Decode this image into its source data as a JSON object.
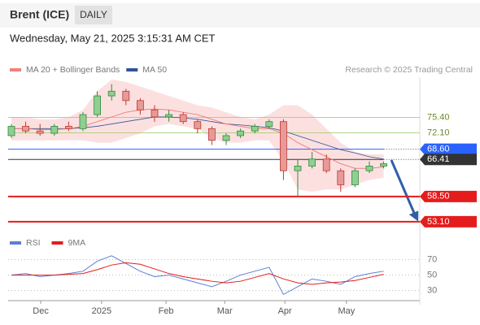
{
  "header": {
    "title": "Brent (ICE)",
    "interval": "DAILY",
    "timestamp": "Wednesday, May 21, 2025 3:15:31 AM CET"
  },
  "chart_data": {
    "type": "candlestick",
    "legend": [
      {
        "name": "MA 20 + Bollinger Bands",
        "color": "#f08080"
      },
      {
        "name": "MA 50",
        "color": "#2f5496"
      }
    ],
    "credit": "Research © 2025 Trading Central",
    "ylim": [
      51,
      84
    ],
    "xticks": [
      {
        "value": 2.05,
        "label": "Dec"
      },
      {
        "value": 6.3,
        "label": "2025"
      },
      {
        "value": 10.8,
        "label": "Feb"
      },
      {
        "value": 14.9,
        "label": "Mar"
      },
      {
        "value": 19.1,
        "label": "Apr"
      },
      {
        "value": 23.4,
        "label": "May"
      }
    ],
    "candles": [
      [
        71.5,
        74,
        71,
        73.5
      ],
      [
        73.5,
        74.5,
        72,
        72.5
      ],
      [
        72.5,
        74,
        71.5,
        72
      ],
      [
        72,
        74,
        71.5,
        73.5
      ],
      [
        73.5,
        74.5,
        72.5,
        73
      ],
      [
        73,
        76.5,
        72.5,
        76
      ],
      [
        76,
        81,
        75.5,
        80
      ],
      [
        80,
        82.5,
        79,
        81
      ],
      [
        81,
        81.5,
        78,
        79
      ],
      [
        79,
        79.5,
        76,
        77
      ],
      [
        77,
        78,
        74.5,
        75.5
      ],
      [
        75.5,
        77,
        74.5,
        76
      ],
      [
        76,
        76.5,
        74,
        74.5
      ],
      [
        74.5,
        75,
        72,
        73
      ],
      [
        73,
        73.5,
        69.5,
        70.5
      ],
      [
        70.5,
        72,
        69.5,
        71.5
      ],
      [
        71.5,
        73,
        71,
        72.5
      ],
      [
        72.5,
        74,
        72,
        73.5
      ],
      [
        73.5,
        75,
        73,
        74.5
      ],
      [
        74.5,
        75,
        62,
        64
      ],
      [
        64,
        66.5,
        58.5,
        65
      ],
      [
        65,
        68,
        64.5,
        66.5
      ],
      [
        66.5,
        67.5,
        63.5,
        64
      ],
      [
        64,
        64.5,
        59.5,
        61
      ],
      [
        61,
        64.5,
        60.5,
        64
      ],
      [
        64,
        66,
        63.5,
        65
      ],
      [
        65,
        66,
        64.5,
        65.5
      ]
    ],
    "ma20": [
      73,
      73,
      72.8,
      72.8,
      73,
      73.5,
      74.5,
      75.5,
      76.5,
      77,
      77.2,
      77,
      76.5,
      76,
      75,
      74,
      73.5,
      73,
      73,
      72,
      70,
      68.5,
      67,
      65.5,
      64.5,
      64.5,
      64.8
    ],
    "ma50": [
      73,
      73,
      73,
      73,
      73,
      73.2,
      73.5,
      74,
      74.5,
      75,
      75.5,
      75.5,
      75.3,
      75,
      74.5,
      74,
      73.8,
      73.5,
      73.2,
      72.5,
      71.5,
      70.5,
      69.5,
      68.5,
      67.8,
      67,
      66.5
    ],
    "bb_upper": [
      75.5,
      75.5,
      75,
      75,
      75.5,
      77,
      81,
      83.5,
      83,
      82,
      81,
      80,
      79,
      78,
      77.5,
      76.5,
      75.5,
      75,
      76,
      78,
      78,
      76,
      73,
      70,
      68,
      67.5,
      67.5
    ],
    "bb_lower": [
      70.5,
      70.5,
      70.5,
      70.5,
      70.5,
      70.5,
      70,
      70,
      71,
      72,
      73.5,
      74,
      73.5,
      73,
      71,
      70,
      70,
      70.5,
      70.5,
      66,
      60,
      59.5,
      60,
      60,
      61,
      62,
      62.5
    ],
    "levels": [
      {
        "value": 75.4,
        "label": "75.40",
        "color": "#9ccc65",
        "style": "text"
      },
      {
        "value": 72.1,
        "label": "72.10",
        "color": "#9ccc65",
        "style": "text"
      },
      {
        "value": 68.6,
        "label": "68.60",
        "color": "#2962ff",
        "style": "tag"
      },
      {
        "value": 66.41,
        "label": "66.41",
        "color": "#333333",
        "style": "tag"
      },
      {
        "value": 58.5,
        "label": "58.50",
        "color": "#e51c1c",
        "style": "tag"
      },
      {
        "value": 53.1,
        "label": "53.10",
        "color": "#e51c1c",
        "style": "tag"
      }
    ],
    "rsi": {
      "legend": [
        {
          "name": "RSI",
          "color": "#5b7fd6"
        },
        {
          "name": "9MA",
          "color": "#e51c1c"
        }
      ],
      "ylim": [
        17,
        80
      ],
      "yticks": [
        70,
        50,
        30
      ],
      "values": [
        50,
        52,
        48,
        50,
        52,
        55,
        68,
        75,
        65,
        55,
        48,
        50,
        45,
        40,
        35,
        42,
        50,
        55,
        60,
        25,
        35,
        45,
        42,
        38,
        48,
        52,
        55
      ],
      "ma9": [
        50,
        50,
        50,
        50,
        51,
        52,
        57,
        63,
        66,
        64,
        58,
        52,
        48,
        45,
        42,
        40,
        42,
        47,
        52,
        45,
        40,
        38,
        40,
        41,
        43,
        47,
        51
      ]
    }
  }
}
